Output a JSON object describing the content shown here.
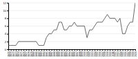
{
  "chart_data": {
    "type": "line",
    "x": [
      1970,
      1971,
      1972,
      1973,
      1974,
      1975,
      1976,
      1977,
      1978,
      1979,
      1980,
      1981,
      1982,
      1983,
      1984,
      1985,
      1986,
      1987,
      1988,
      1989,
      1990,
      1991,
      1992,
      1993,
      1994,
      1995,
      1996,
      1997,
      1998,
      1999,
      2000,
      2001,
      2002,
      2003,
      2004,
      2005,
      2006,
      2007,
      2008,
      2009,
      2010,
      2011,
      2012,
      2013,
      2014,
      2015,
      2016,
      2017,
      2018,
      2019,
      2020
    ],
    "values": [
      1,
      1,
      1,
      1,
      2,
      2,
      2,
      2,
      2,
      2,
      2,
      2,
      1,
      1,
      1,
      3,
      4,
      4,
      5,
      5,
      7,
      7,
      5,
      5,
      6,
      6,
      7,
      6,
      6,
      6,
      6,
      3,
      5,
      5,
      6,
      7,
      7,
      7,
      8,
      9,
      8,
      8,
      8,
      7,
      8,
      4,
      4,
      6,
      7,
      7,
      12
    ],
    "color": "#444444",
    "xlim": [
      1970,
      2020
    ],
    "xticks": [
      1970,
      1971,
      1972,
      1973,
      1974,
      1975,
      1976,
      1977,
      1978,
      1979,
      1980,
      1981,
      1982,
      1983,
      1984,
      1985,
      1986,
      1987,
      1988,
      1989,
      1990,
      1991,
      1992,
      1993,
      1994,
      1995,
      1996,
      1997,
      1998,
      1999,
      2000,
      2001,
      2002,
      2003,
      2004,
      2005,
      2006,
      2007,
      2008,
      2009,
      2010,
      2011,
      2012,
      2013,
      2014,
      2015,
      2016,
      2017,
      2018,
      2019,
      2020
    ],
    "ylim": [
      0,
      12
    ],
    "yticks": [
      0,
      2,
      4,
      6,
      8,
      10,
      12
    ],
    "grid": true
  }
}
